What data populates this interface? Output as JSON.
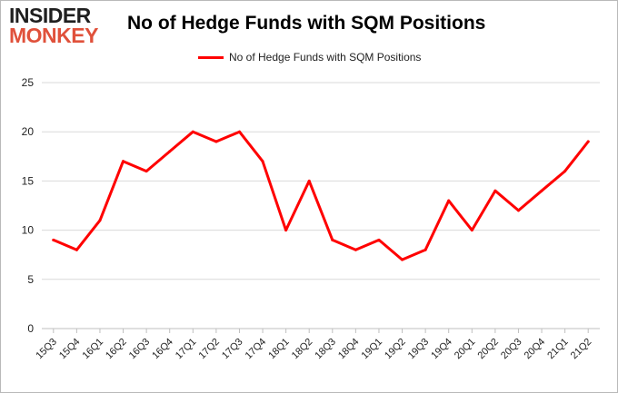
{
  "brand": {
    "line1": "INSIDER",
    "line2": "MONKEY",
    "dark_color": "#1f1f1f",
    "accent_color": "#e0513b"
  },
  "chart_data": {
    "type": "line",
    "title": "No of Hedge Funds with SQM Positions",
    "xlabel": "",
    "ylabel": "",
    "ylim": [
      0,
      25
    ],
    "yticks": [
      0,
      5,
      10,
      15,
      20,
      25
    ],
    "grid": true,
    "legend": "top-center",
    "categories": [
      "15Q3",
      "15Q4",
      "16Q1",
      "16Q2",
      "16Q3",
      "16Q4",
      "17Q1",
      "17Q2",
      "17Q3",
      "17Q4",
      "18Q1",
      "18Q2",
      "18Q3",
      "18Q4",
      "19Q1",
      "19Q2",
      "19Q3",
      "19Q4",
      "20Q1",
      "20Q2",
      "20Q3",
      "20Q4",
      "21Q1",
      "21Q2"
    ],
    "series": [
      {
        "name": "No of Hedge Funds with SQM Positions",
        "color": "#ff0000",
        "values": [
          9,
          8,
          11,
          17,
          16,
          18,
          20,
          19,
          20,
          17,
          10,
          15,
          9,
          8,
          9,
          7,
          8,
          13,
          10,
          14,
          12,
          14,
          16,
          19
        ]
      }
    ]
  }
}
